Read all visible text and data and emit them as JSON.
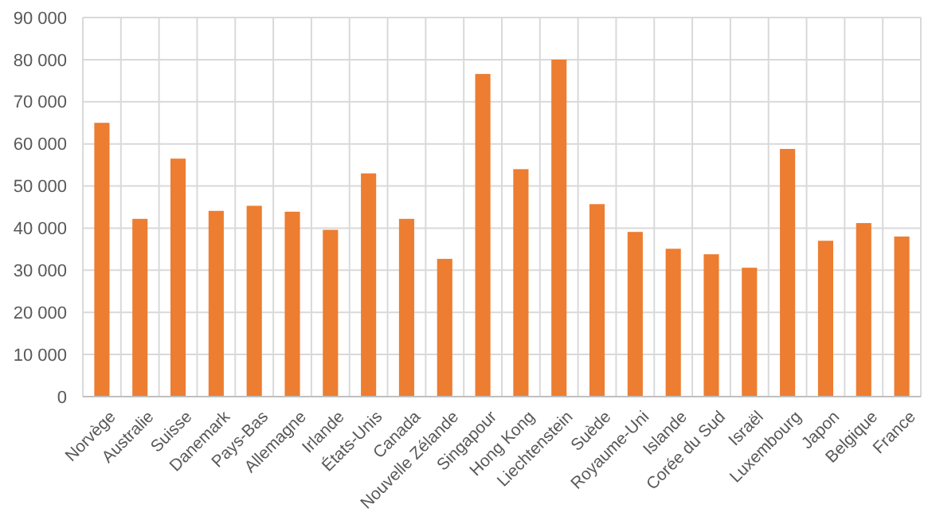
{
  "chart_data": {
    "type": "bar",
    "categories": [
      "Norvège",
      "Australie",
      "Suisse",
      "Danemark",
      "Pays-Bas",
      "Allemagne",
      "Irlande",
      "États-Unis",
      "Canada",
      "Nouvelle Zélande",
      "Singapour",
      "Hong Kong",
      "Liechtenstein",
      "Suède",
      "Royaume-Uni",
      "Islande",
      "Corée du Sud",
      "Israël",
      "Luxembourg",
      "Japon",
      "Belgique",
      "France"
    ],
    "values": [
      65000,
      42200,
      56500,
      44100,
      45300,
      43900,
      39600,
      53000,
      42200,
      32700,
      76600,
      54000,
      80000,
      45700,
      39100,
      35100,
      33800,
      30600,
      58800,
      37000,
      41200,
      38000
    ],
    "color": "#ed7d31",
    "ylim": [
      0,
      90000
    ],
    "yticks": [
      0,
      {
        "value": 10000,
        "label": "10 000"
      },
      {
        "value": 20000,
        "label": "20 000"
      },
      {
        "value": 30000,
        "label": "30 000"
      },
      {
        "value": 40000,
        "label": "40 000"
      },
      {
        "value": 50000,
        "label": "50 000"
      },
      {
        "value": 60000,
        "label": "60 000"
      },
      {
        "value": 70000,
        "label": "70 000"
      },
      {
        "value": 80000,
        "label": "80 000"
      },
      {
        "value": 90000,
        "label": "90 000"
      }
    ],
    "grid": true
  }
}
